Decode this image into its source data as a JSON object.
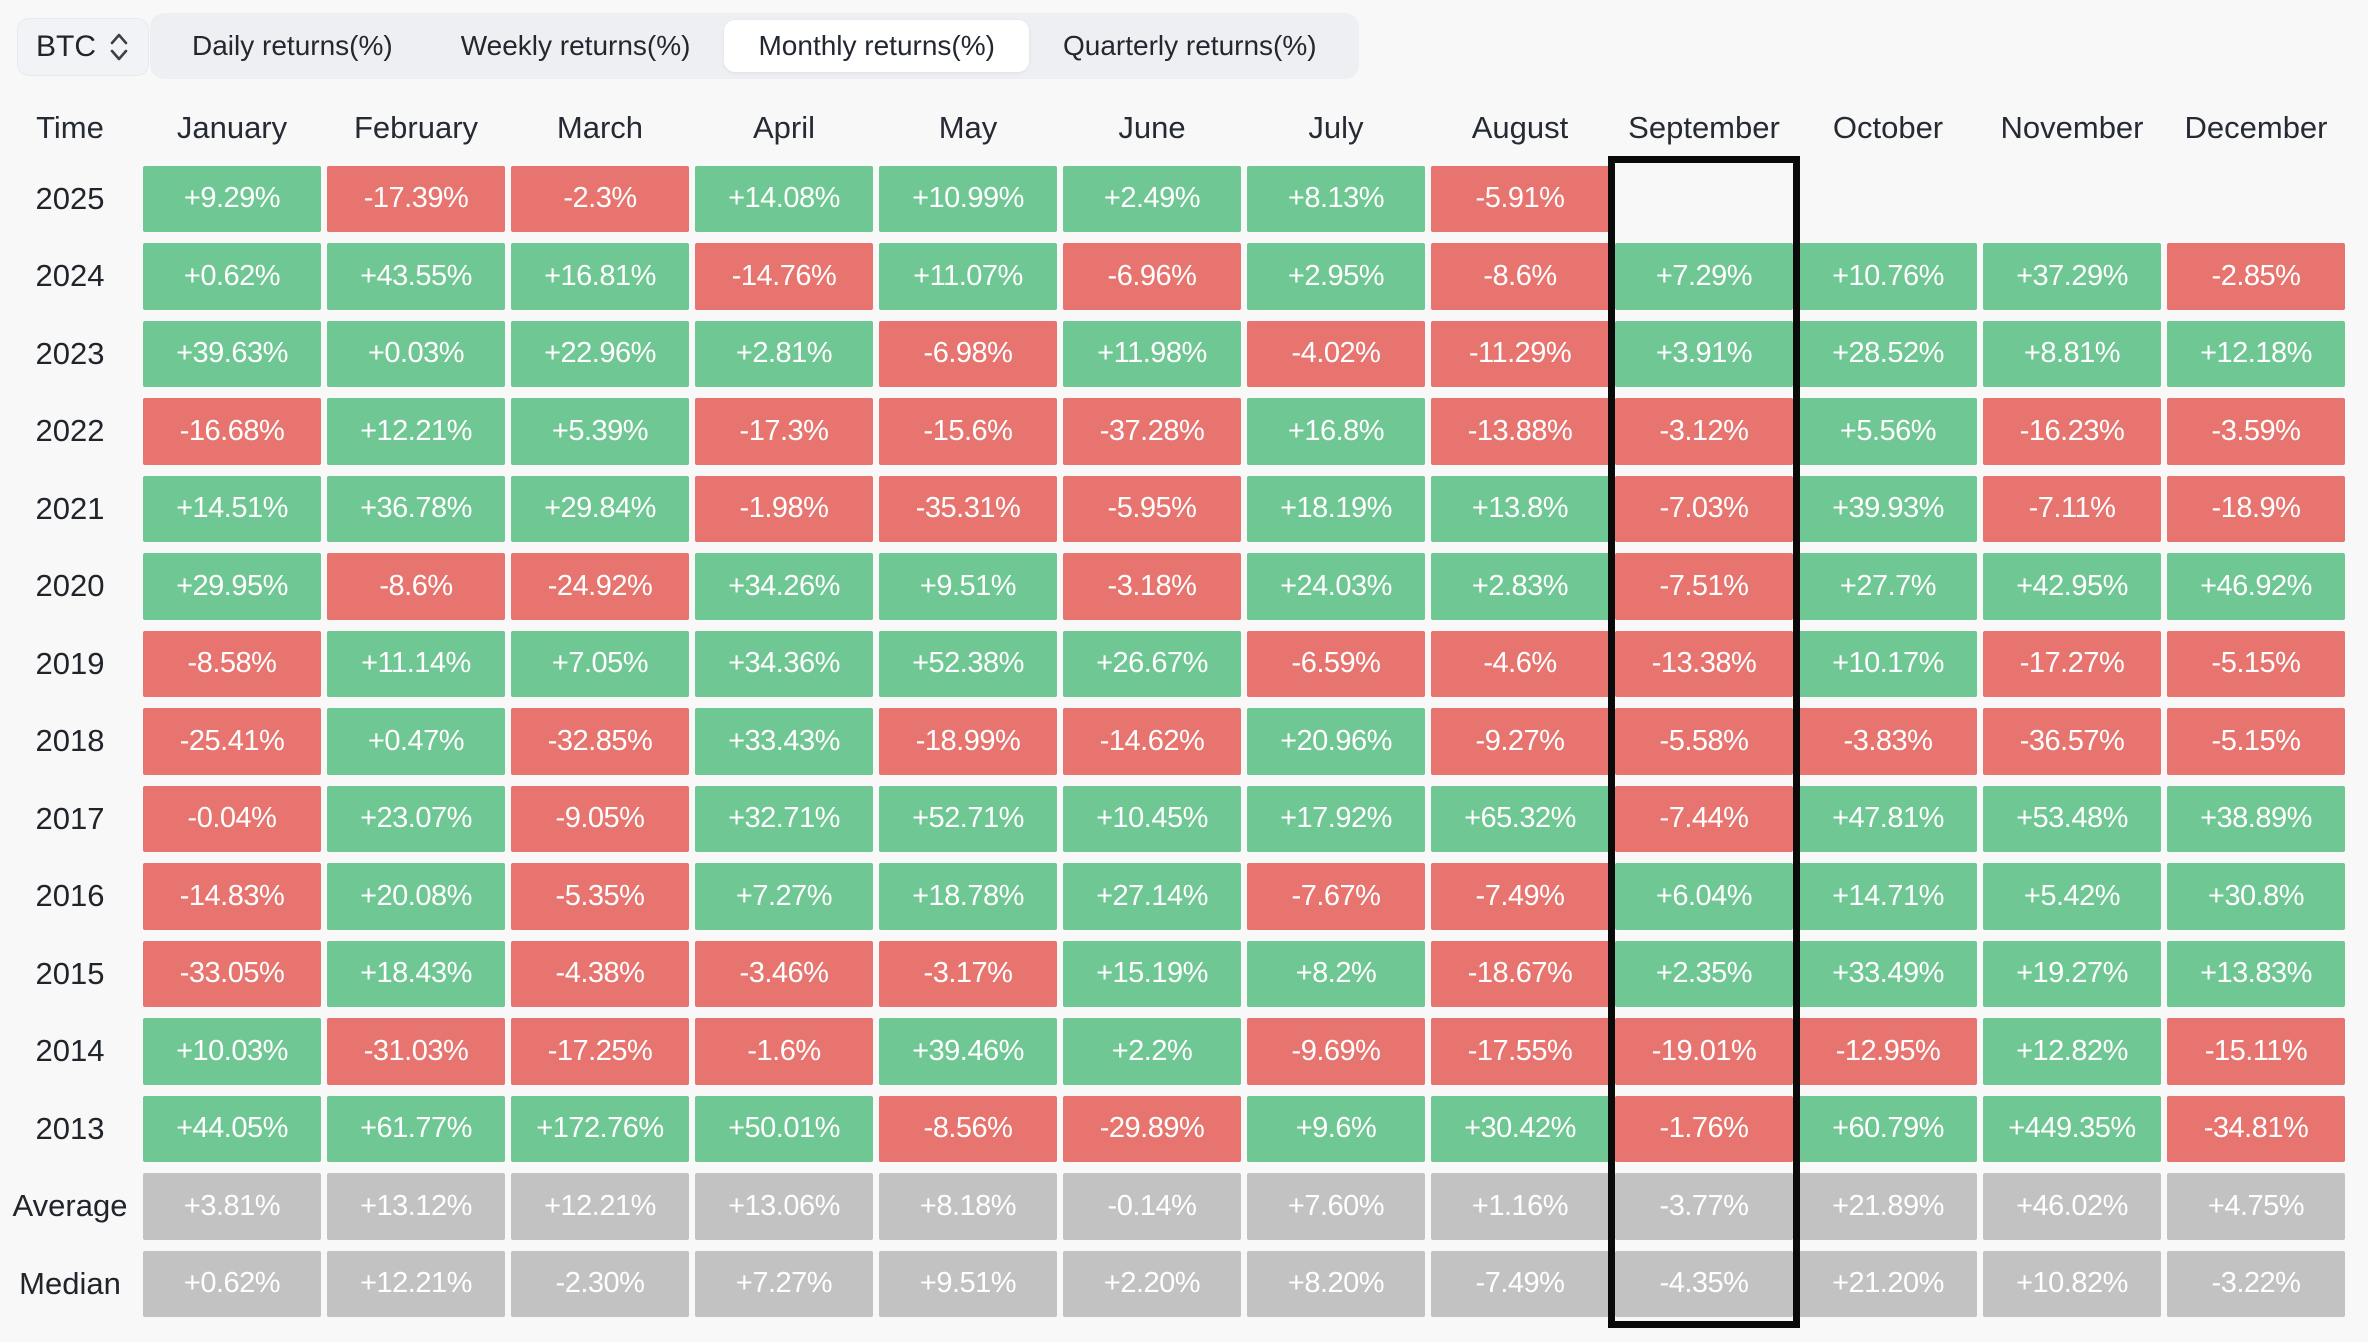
{
  "asset_selector": {
    "label": "BTC"
  },
  "tabs": [
    {
      "label": "Daily returns(%)",
      "active": false
    },
    {
      "label": "Weekly returns(%)",
      "active": false
    },
    {
      "label": "Monthly returns(%)",
      "active": true
    },
    {
      "label": "Quarterly returns(%)",
      "active": false
    }
  ],
  "table": {
    "time_header": "Time",
    "months": [
      "January",
      "February",
      "March",
      "April",
      "May",
      "June",
      "July",
      "August",
      "September",
      "October",
      "November",
      "December"
    ],
    "highlighted_month": "September",
    "rows": [
      {
        "label": "2025",
        "type": "year",
        "values": [
          "+9.29%",
          "-17.39%",
          "-2.3%",
          "+14.08%",
          "+10.99%",
          "+2.49%",
          "+8.13%",
          "-5.91%",
          null,
          null,
          null,
          null
        ]
      },
      {
        "label": "2024",
        "type": "year",
        "values": [
          "+0.62%",
          "+43.55%",
          "+16.81%",
          "-14.76%",
          "+11.07%",
          "-6.96%",
          "+2.95%",
          "-8.6%",
          "+7.29%",
          "+10.76%",
          "+37.29%",
          "-2.85%"
        ]
      },
      {
        "label": "2023",
        "type": "year",
        "values": [
          "+39.63%",
          "+0.03%",
          "+22.96%",
          "+2.81%",
          "-6.98%",
          "+11.98%",
          "-4.02%",
          "-11.29%",
          "+3.91%",
          "+28.52%",
          "+8.81%",
          "+12.18%"
        ]
      },
      {
        "label": "2022",
        "type": "year",
        "values": [
          "-16.68%",
          "+12.21%",
          "+5.39%",
          "-17.3%",
          "-15.6%",
          "-37.28%",
          "+16.8%",
          "-13.88%",
          "-3.12%",
          "+5.56%",
          "-16.23%",
          "-3.59%"
        ]
      },
      {
        "label": "2021",
        "type": "year",
        "values": [
          "+14.51%",
          "+36.78%",
          "+29.84%",
          "-1.98%",
          "-35.31%",
          "-5.95%",
          "+18.19%",
          "+13.8%",
          "-7.03%",
          "+39.93%",
          "-7.11%",
          "-18.9%"
        ]
      },
      {
        "label": "2020",
        "type": "year",
        "values": [
          "+29.95%",
          "-8.6%",
          "-24.92%",
          "+34.26%",
          "+9.51%",
          "-3.18%",
          "+24.03%",
          "+2.83%",
          "-7.51%",
          "+27.7%",
          "+42.95%",
          "+46.92%"
        ]
      },
      {
        "label": "2019",
        "type": "year",
        "values": [
          "-8.58%",
          "+11.14%",
          "+7.05%",
          "+34.36%",
          "+52.38%",
          "+26.67%",
          "-6.59%",
          "-4.6%",
          "-13.38%",
          "+10.17%",
          "-17.27%",
          "-5.15%"
        ]
      },
      {
        "label": "2018",
        "type": "year",
        "values": [
          "-25.41%",
          "+0.47%",
          "-32.85%",
          "+33.43%",
          "-18.99%",
          "-14.62%",
          "+20.96%",
          "-9.27%",
          "-5.58%",
          "-3.83%",
          "-36.57%",
          "-5.15%"
        ]
      },
      {
        "label": "2017",
        "type": "year",
        "values": [
          "-0.04%",
          "+23.07%",
          "-9.05%",
          "+32.71%",
          "+52.71%",
          "+10.45%",
          "+17.92%",
          "+65.32%",
          "-7.44%",
          "+47.81%",
          "+53.48%",
          "+38.89%"
        ]
      },
      {
        "label": "2016",
        "type": "year",
        "values": [
          "-14.83%",
          "+20.08%",
          "-5.35%",
          "+7.27%",
          "+18.78%",
          "+27.14%",
          "-7.67%",
          "-7.49%",
          "+6.04%",
          "+14.71%",
          "+5.42%",
          "+30.8%"
        ]
      },
      {
        "label": "2015",
        "type": "year",
        "values": [
          "-33.05%",
          "+18.43%",
          "-4.38%",
          "-3.46%",
          "-3.17%",
          "+15.19%",
          "+8.2%",
          "-18.67%",
          "+2.35%",
          "+33.49%",
          "+19.27%",
          "+13.83%"
        ]
      },
      {
        "label": "2014",
        "type": "year",
        "values": [
          "+10.03%",
          "-31.03%",
          "-17.25%",
          "-1.6%",
          "+39.46%",
          "+2.2%",
          "-9.69%",
          "-17.55%",
          "-19.01%",
          "-12.95%",
          "+12.82%",
          "-15.11%"
        ]
      },
      {
        "label": "2013",
        "type": "year",
        "values": [
          "+44.05%",
          "+61.77%",
          "+172.76%",
          "+50.01%",
          "-8.56%",
          "-29.89%",
          "+9.6%",
          "+30.42%",
          "-1.76%",
          "+60.79%",
          "+449.35%",
          "-34.81%"
        ]
      },
      {
        "label": "Average",
        "type": "summary",
        "values": [
          "+3.81%",
          "+13.12%",
          "+12.21%",
          "+13.06%",
          "+8.18%",
          "-0.14%",
          "+7.60%",
          "+1.16%",
          "-3.77%",
          "+21.89%",
          "+46.02%",
          "+4.75%"
        ]
      },
      {
        "label": "Median",
        "type": "summary",
        "values": [
          "+0.62%",
          "+12.21%",
          "-2.30%",
          "+7.27%",
          "+9.51%",
          "+2.20%",
          "+8.20%",
          "-7.49%",
          "-4.35%",
          "+21.20%",
          "+10.82%",
          "-3.22%"
        ]
      }
    ]
  },
  "colors": {
    "positive": "#6fc793",
    "negative": "#e7746f",
    "summary": "#c2c2c2",
    "highlight_border": "#0a0a0a",
    "page_bg": "#f8f8f9",
    "tabs_bg": "#edeff3",
    "chip_bg": "#f2f3f6",
    "active_tab_bg": "#ffffff",
    "cell_text": "#ffffff",
    "header_text": "#262b33"
  }
}
